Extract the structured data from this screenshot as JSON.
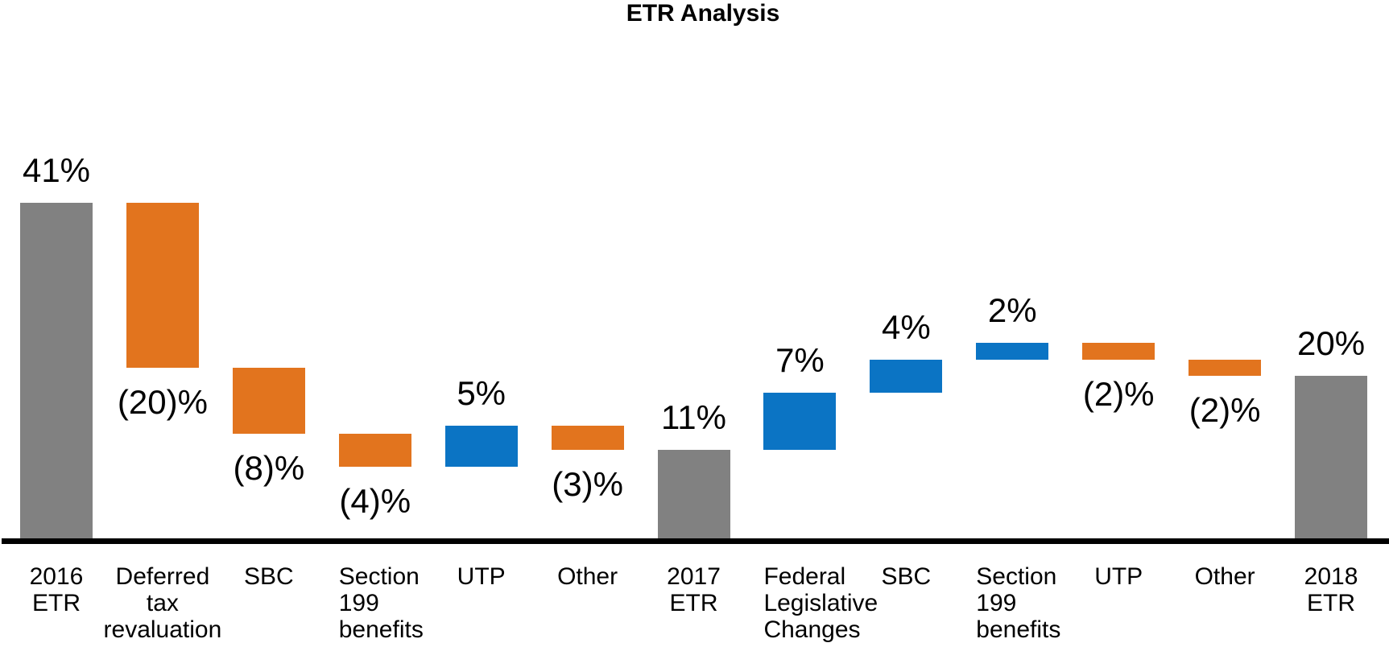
{
  "page": {
    "background_color": "#FFFFFF"
  },
  "chart_data": {
    "type": "waterfall",
    "title": "ETR Analysis",
    "xlabel": "",
    "ylabel": "",
    "ylim": [
      0,
      45
    ],
    "grid": false,
    "legend": null,
    "axis": {
      "x_axis_line_visible": true,
      "y_axis_visible": false
    },
    "colors": {
      "increase": "#0B74C4",
      "decrease": "#E2741E",
      "total": "#818181",
      "axis_line": "#000000",
      "label_text": "#000000"
    },
    "items": [
      {
        "category": "2016 ETR",
        "category_lines": [
          "2016",
          "ETR"
        ],
        "value": 41,
        "kind": "total",
        "data_label": "41%",
        "label_position": "above",
        "category_align": "center"
      },
      {
        "category": "Deferred tax revaluation",
        "category_lines": [
          "Deferred",
          "tax",
          "revaluation"
        ],
        "value": -20,
        "kind": "decrease",
        "data_label": "(20)%",
        "label_position": "below",
        "category_align": "center"
      },
      {
        "category": "SBC",
        "category_lines": [
          "SBC"
        ],
        "value": -8,
        "kind": "decrease",
        "data_label": "(8)%",
        "label_position": "below",
        "category_align": "center"
      },
      {
        "category": "Section 199 benefits",
        "category_lines": [
          "Section",
          "199",
          "benefits"
        ],
        "value": -4,
        "kind": "decrease",
        "data_label": "(4)%",
        "label_position": "below",
        "category_align": "left"
      },
      {
        "category": "UTP",
        "category_lines": [
          "UTP"
        ],
        "value": 5,
        "kind": "increase",
        "data_label": "5%",
        "label_position": "above",
        "category_align": "center"
      },
      {
        "category": "Other",
        "category_lines": [
          "Other"
        ],
        "value": -3,
        "kind": "decrease",
        "data_label": "(3)%",
        "label_position": "below",
        "category_align": "center"
      },
      {
        "category": "2017 ETR",
        "category_lines": [
          "2017",
          "ETR"
        ],
        "value": 11,
        "kind": "total",
        "data_label": "11%",
        "label_position": "above",
        "category_align": "center"
      },
      {
        "category": "Federal Legislative Changes",
        "category_lines": [
          "Federal",
          "Legislative",
          "Changes"
        ],
        "value": 7,
        "kind": "increase",
        "data_label": "7%",
        "label_position": "above",
        "category_align": "left"
      },
      {
        "category": "SBC",
        "category_lines": [
          "SBC"
        ],
        "value": 4,
        "kind": "increase",
        "data_label": "4%",
        "label_position": "above",
        "category_align": "center"
      },
      {
        "category": "Section 199 benefits",
        "category_lines": [
          "Section",
          "199",
          "benefits"
        ],
        "value": 2,
        "kind": "increase",
        "data_label": "2%",
        "label_position": "above",
        "category_align": "left"
      },
      {
        "category": "UTP",
        "category_lines": [
          "UTP"
        ],
        "value": -2,
        "kind": "decrease",
        "data_label": "(2)%",
        "label_position": "below",
        "category_align": "center"
      },
      {
        "category": "Other",
        "category_lines": [
          "Other"
        ],
        "value": -2,
        "kind": "decrease",
        "data_label": "(2)%",
        "label_position": "below",
        "category_align": "center"
      },
      {
        "category": "2018 ETR",
        "category_lines": [
          "2018",
          "ETR"
        ],
        "value": 20,
        "kind": "total",
        "data_label": "20%",
        "label_position": "above",
        "category_align": "center"
      }
    ]
  }
}
